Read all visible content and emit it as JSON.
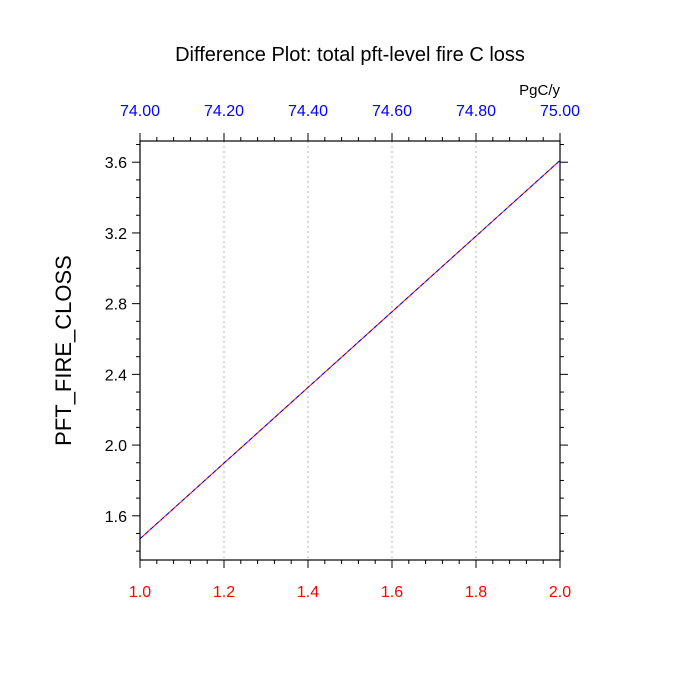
{
  "chart_data": {
    "type": "line",
    "title": "Difference Plot: total pft-level fire C loss",
    "ylabel": "PFT_FIRE_CLOSS",
    "top_axis_units": "PgC/y",
    "x": [
      1.0,
      2.0
    ],
    "xlim": [
      1.0,
      2.0
    ],
    "x_ticks": [
      "1.0",
      "1.2",
      "1.4",
      "1.6",
      "1.8",
      "2.0"
    ],
    "x_tick_values": [
      1.0,
      1.2,
      1.4,
      1.6,
      1.8,
      2.0
    ],
    "x_tick_color": "#ff0000",
    "top_ticks": [
      "74.00",
      "74.20",
      "74.40",
      "74.60",
      "74.80",
      "75.00"
    ],
    "top_tick_color": "#0000ff",
    "ylim": [
      1.35,
      3.72
    ],
    "y_ticks": [
      "1.6",
      "2.0",
      "2.4",
      "2.8",
      "3.2",
      "3.6"
    ],
    "y_tick_values": [
      1.6,
      2.0,
      2.4,
      2.8,
      3.2,
      3.6
    ],
    "grid": "vertical dotted",
    "series": [
      {
        "values": [
          1.47,
          3.61
        ],
        "color": "#ff0000",
        "style": "solid"
      },
      {
        "values": [
          1.47,
          3.61
        ],
        "color": "#0000ff",
        "style": "dashed"
      }
    ]
  }
}
